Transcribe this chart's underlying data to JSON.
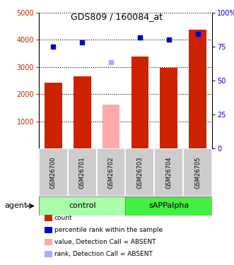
{
  "title": "GDS809 / 160084_at",
  "samples": [
    "GSM26700",
    "GSM26701",
    "GSM26702",
    "GSM26703",
    "GSM26704",
    "GSM26705"
  ],
  "groups": [
    "control",
    "control",
    "control",
    "sAPPalpha",
    "sAPPalpha",
    "sAPPalpha"
  ],
  "bar_values": [
    2420,
    2650,
    null,
    3380,
    2980,
    4380
  ],
  "bar_absent": [
    null,
    null,
    1620,
    null,
    null,
    null
  ],
  "dot_values": [
    3750,
    3900,
    null,
    4080,
    4000,
    4230
  ],
  "dot_absent": [
    null,
    null,
    3180,
    null,
    null,
    null
  ],
  "bar_color": "#cc2200",
  "bar_absent_color": "#ffaaaa",
  "dot_color": "#0000cc",
  "dot_absent_color": "#aaaaff",
  "ylim_left": [
    0,
    5000
  ],
  "ylim_right": [
    0,
    100
  ],
  "yticks_left": [
    1000,
    2000,
    3000,
    4000,
    5000
  ],
  "yticks_right": [
    0,
    25,
    50,
    75,
    100
  ],
  "control_color": "#aaffaa",
  "sapp_color": "#44ee44",
  "agent_label": "agent",
  "legend_items": [
    {
      "label": "count",
      "color": "#cc2200"
    },
    {
      "label": "percentile rank within the sample",
      "color": "#0000cc"
    },
    {
      "label": "value, Detection Call = ABSENT",
      "color": "#ffaaaa"
    },
    {
      "label": "rank, Detection Call = ABSENT",
      "color": "#aaaaff"
    }
  ]
}
